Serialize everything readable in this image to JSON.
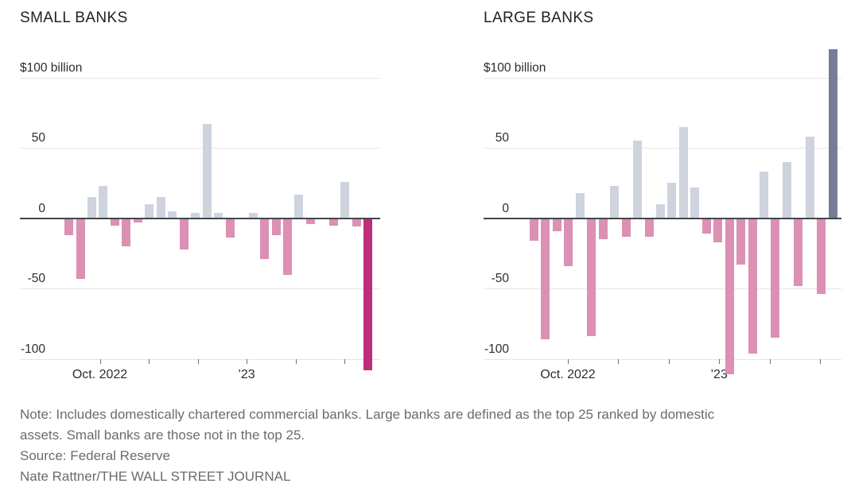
{
  "chart_data": [
    {
      "type": "bar",
      "title": "SMALL BANKS",
      "unit_label": "$100 billion",
      "y_axis": {
        "ticks": [
          100,
          50,
          0,
          -50,
          -100
        ],
        "labels": [
          "$100 billion",
          "50",
          "0",
          "-50",
          "-100"
        ],
        "ylim": [
          -125,
          125
        ],
        "grid": true
      },
      "x_axis": {
        "num_ticks": 6,
        "labels": [
          {
            "text": "Oct. 2022",
            "tick_index": 0
          },
          {
            "text": "’23",
            "tick_index": 3
          }
        ]
      },
      "values": [
        -12,
        -43,
        15,
        23,
        -5,
        -20,
        -3,
        10,
        15,
        5,
        -22,
        4,
        67,
        4,
        -14,
        -1,
        4,
        -29,
        -12,
        -40,
        17,
        -4,
        0,
        -5,
        26,
        -6,
        -108
      ],
      "highlight_index": 26,
      "highlight_color": "#bd2e7e"
    },
    {
      "type": "bar",
      "title": "LARGE BANKS",
      "unit_label": "$100 billion",
      "y_axis": {
        "ticks": [
          100,
          50,
          0,
          -50,
          -100
        ],
        "labels": [
          "$100 billion",
          "50",
          "0",
          "-50",
          "-100"
        ],
        "ylim": [
          -125,
          125
        ],
        "grid": true
      },
      "x_axis": {
        "num_ticks": 6,
        "labels": [
          {
            "text": "Oct. 2022",
            "tick_index": 0
          },
          {
            "text": "’23",
            "tick_index": 3
          }
        ]
      },
      "values": [
        -16,
        -86,
        -9,
        -34,
        18,
        -84,
        -15,
        23,
        -13,
        55,
        -13,
        10,
        25,
        65,
        22,
        -11,
        -17,
        -111,
        -33,
        -96,
        33,
        -85,
        40,
        -48,
        58,
        -54,
        120
      ],
      "highlight_index": 26,
      "highlight_color": "#767e97"
    }
  ],
  "colors": {
    "positive_bar": "#ced3de",
    "negative_bar": "#db90b4",
    "small_highlight": "#bd2e7e",
    "large_highlight": "#767e97",
    "axis_line": "#43464b",
    "gridline": "#e6e6e6"
  },
  "footer": {
    "note_lines": [
      "Note: Includes domestically chartered commercial banks. Large banks are defined as the top 25 ranked by domestic",
      "assets. Small banks are those not in the top 25."
    ],
    "source": "Source:  Federal Reserve",
    "credit": "Nate Rattner/THE WALL STREET JOURNAL"
  }
}
